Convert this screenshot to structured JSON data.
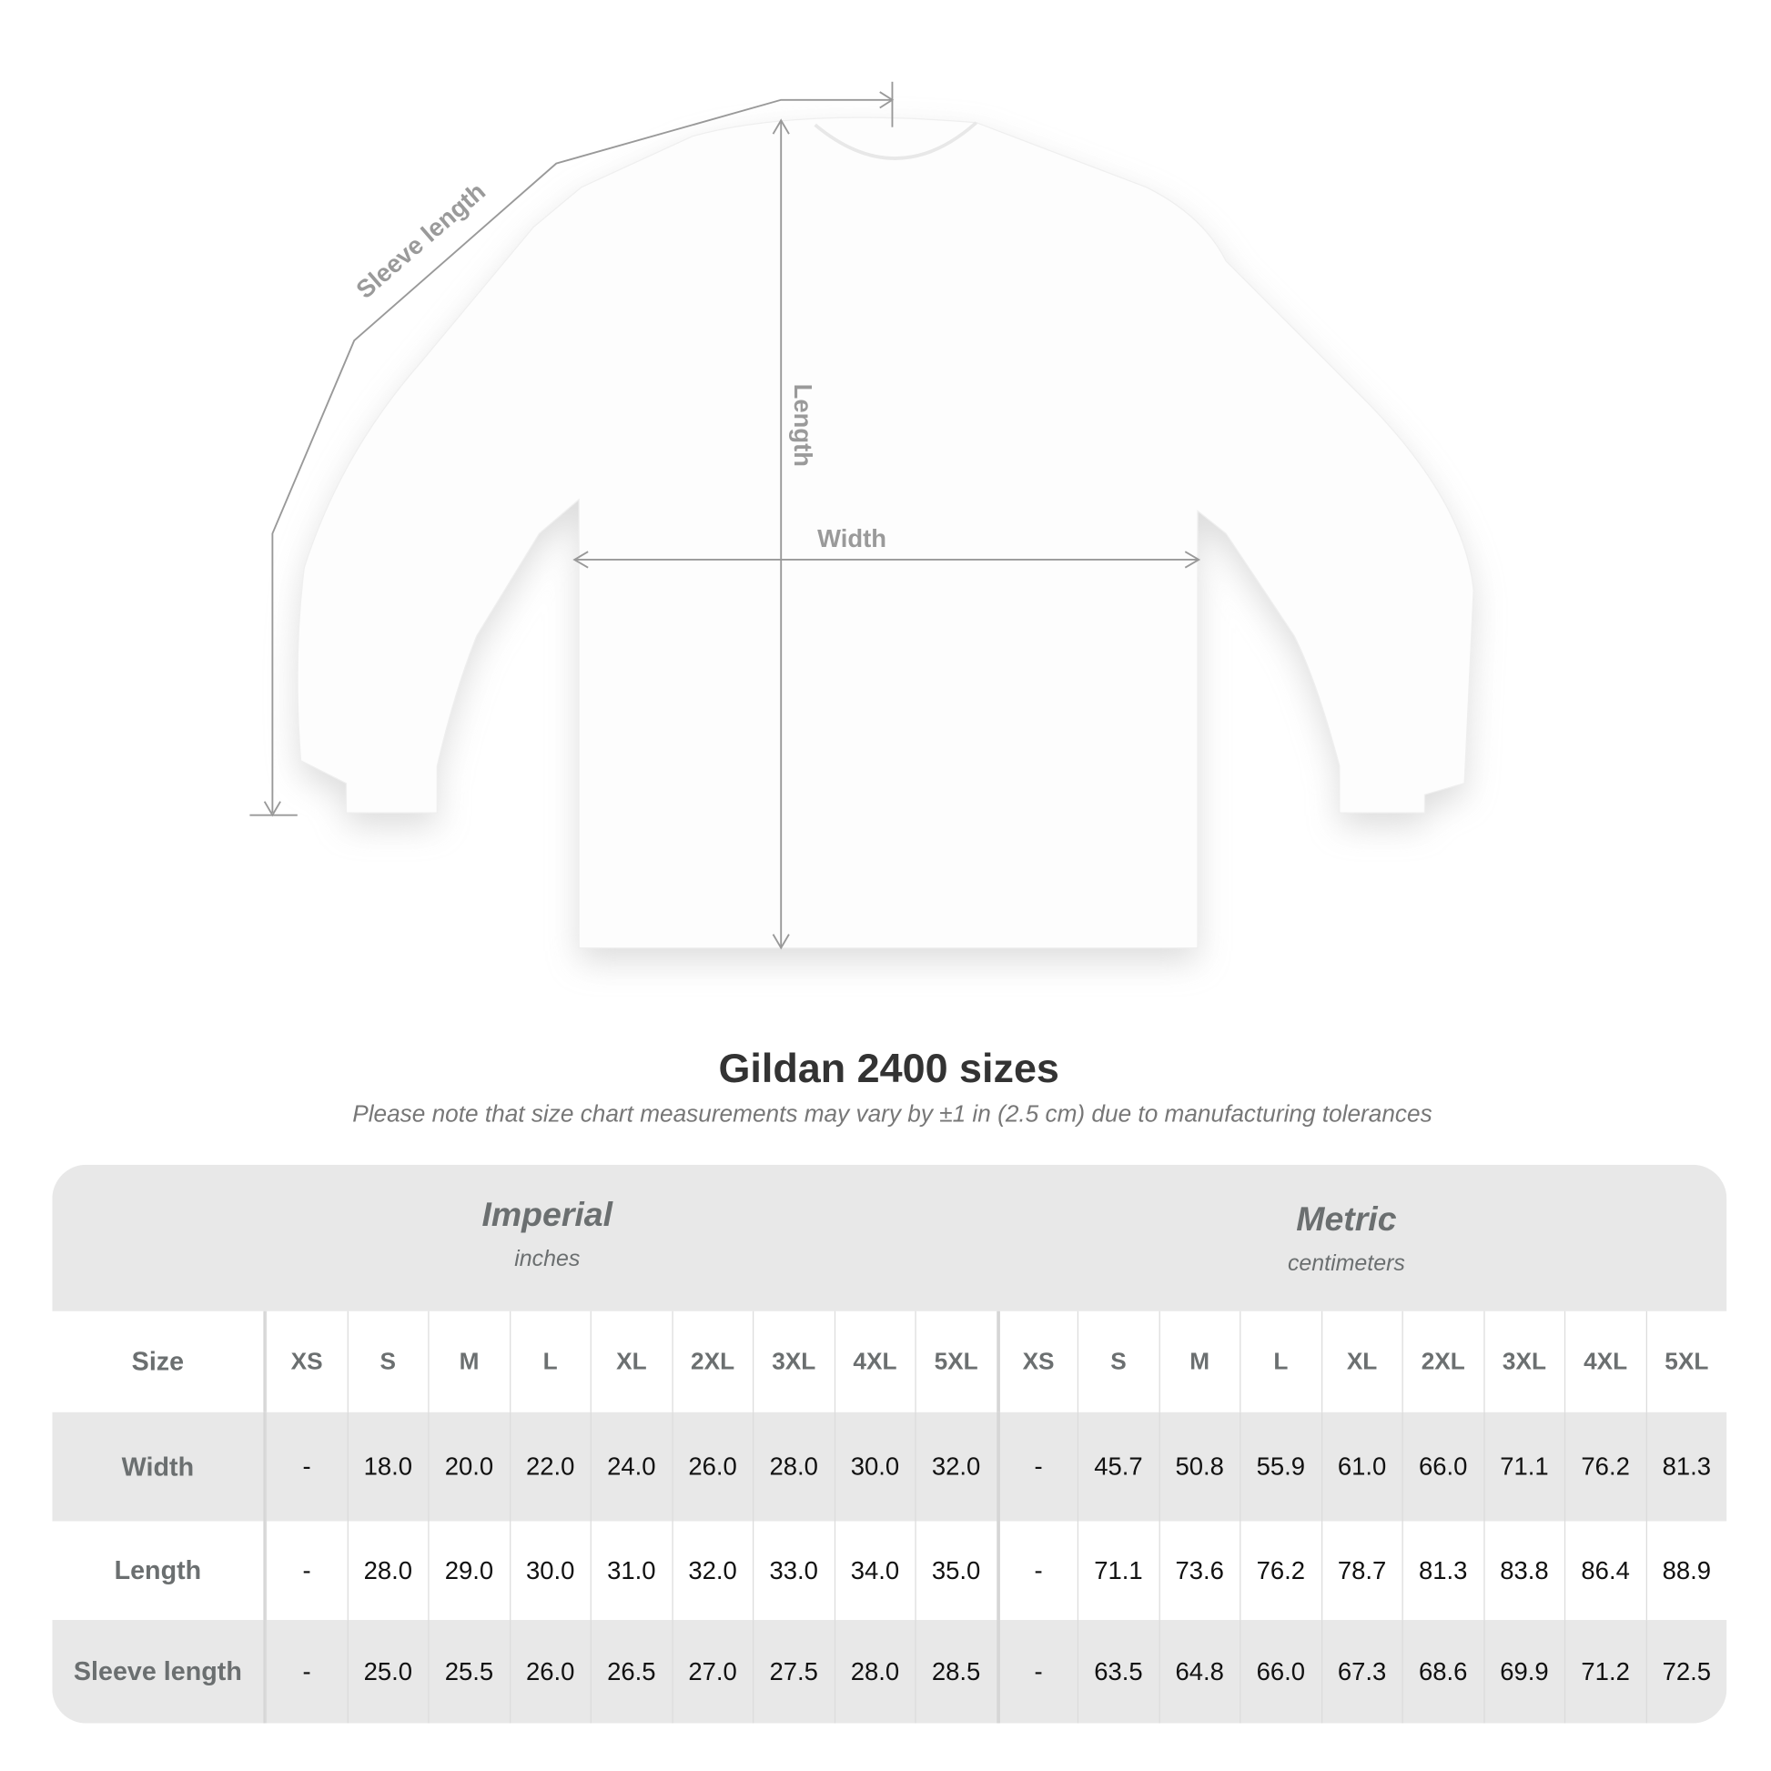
{
  "diagram": {
    "sleeve_label": "Sleeve length",
    "length_label": "Length",
    "width_label": "Width"
  },
  "title": "Gildan 2400 sizes",
  "subtitle": "Please note that size chart measurements may vary by ±1 in (2.5 cm) due to manufacturing tolerances",
  "table": {
    "imperial": {
      "name": "Imperial",
      "unit": "inches"
    },
    "metric": {
      "name": "Metric",
      "unit": "centimeters"
    },
    "size_label": "Size",
    "sizes": [
      "XS",
      "S",
      "M",
      "L",
      "XL",
      "2XL",
      "3XL",
      "4XL",
      "5XL"
    ],
    "rows": [
      {
        "label": "Width",
        "imperial": [
          "-",
          "18.0",
          "20.0",
          "22.0",
          "24.0",
          "26.0",
          "28.0",
          "30.0",
          "32.0"
        ],
        "metric": [
          "-",
          "45.7",
          "50.8",
          "55.9",
          "61.0",
          "66.0",
          "71.1",
          "76.2",
          "81.3"
        ]
      },
      {
        "label": "Length",
        "imperial": [
          "-",
          "28.0",
          "29.0",
          "30.0",
          "31.0",
          "32.0",
          "33.0",
          "34.0",
          "35.0"
        ],
        "metric": [
          "-",
          "71.1",
          "73.6",
          "76.2",
          "78.7",
          "81.3",
          "83.8",
          "86.4",
          "88.9"
        ]
      },
      {
        "label": "Sleeve length",
        "imperial": [
          "-",
          "25.0",
          "25.5",
          "26.0",
          "26.5",
          "27.0",
          "27.5",
          "28.0",
          "28.5"
        ],
        "metric": [
          "-",
          "63.5",
          "64.8",
          "66.0",
          "67.3",
          "68.6",
          "69.9",
          "71.2",
          "72.5"
        ]
      }
    ]
  },
  "colors": {
    "header_bg": "#e8e8e8",
    "label_text": "#6b6f70",
    "measure_line": "#999999"
  }
}
